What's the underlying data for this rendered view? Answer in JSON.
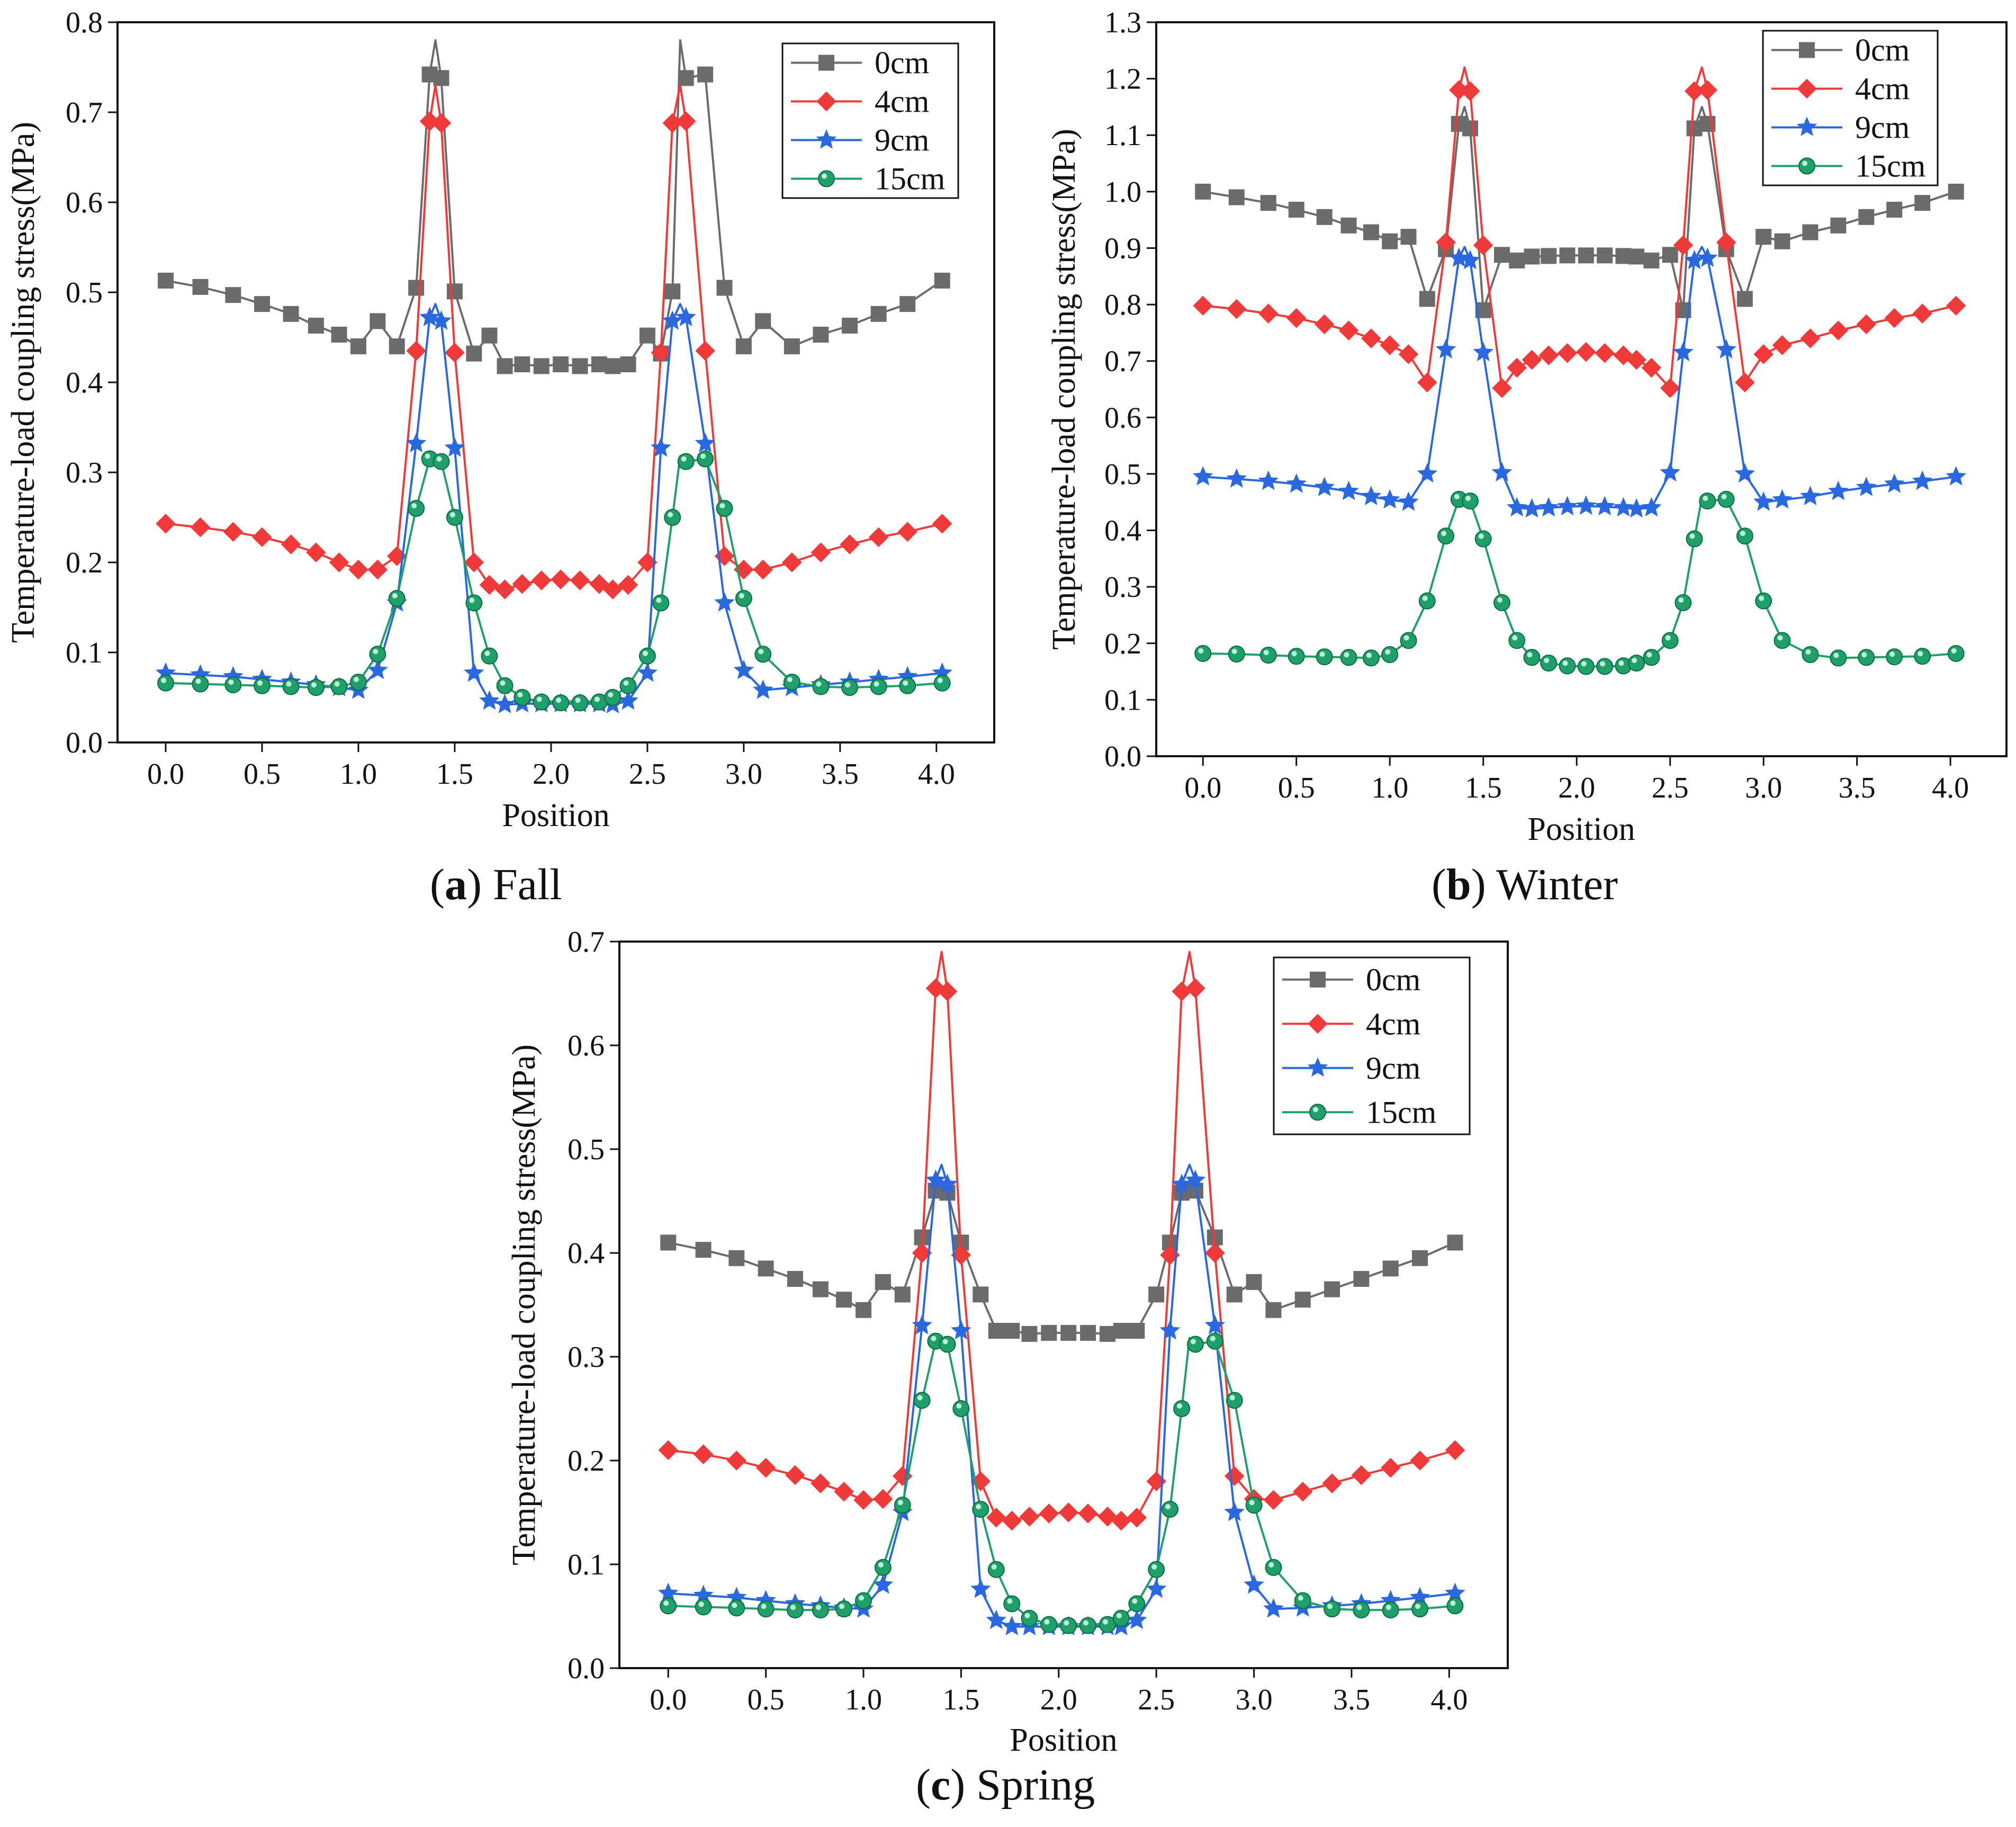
{
  "captions": [
    {
      "open": "(",
      "letter": "a",
      "close": ") ",
      "text": "Fall"
    },
    {
      "open": "(",
      "letter": "b",
      "close": ") ",
      "text": "Winter"
    },
    {
      "open": "(",
      "letter": "c",
      "close": ") ",
      "text": "Spring"
    }
  ],
  "colors": {
    "0cm": "#6b6b6b",
    "4cm": "#f03a3a",
    "9cm": "#2a68e0",
    "15cm": "#1fa06a"
  },
  "chart_data": [
    {
      "type": "line",
      "id": "fall",
      "title": "(a) Fall",
      "xlabel": "Position",
      "ylabel": "Temperature-load coupling stress(MPa)",
      "xlim": [
        -0.25,
        4.3
      ],
      "ylim": [
        0,
        0.8
      ],
      "xticks": [
        0.0,
        0.5,
        1.0,
        1.5,
        2.0,
        2.5,
        3.0,
        3.5,
        4.0
      ],
      "yticks": [
        0.0,
        0.1,
        0.2,
        0.3,
        0.4,
        0.5,
        0.6,
        0.7,
        0.8
      ],
      "legend": "top-right",
      "x": [
        0.0,
        0.18,
        0.35,
        0.5,
        0.65,
        0.78,
        0.9,
        1.0,
        1.1,
        1.2,
        1.3,
        1.37,
        1.43,
        1.5,
        1.6,
        1.68,
        1.76,
        1.85,
        1.95,
        2.05,
        2.15,
        2.25,
        2.32,
        2.4,
        2.5,
        2.57,
        2.63,
        2.7,
        2.8,
        2.9,
        3.0,
        3.1,
        3.25,
        3.4,
        3.55,
        3.7,
        3.85,
        4.03
      ],
      "series": [
        {
          "name": "0cm",
          "marker": "square",
          "peak": 0.78,
          "values": [
            0.513,
            0.506,
            0.497,
            0.487,
            0.476,
            0.463,
            0.453,
            0.44,
            0.468,
            0.44,
            0.505,
            0.742,
            0.738,
            0.501,
            0.432,
            0.452,
            0.418,
            0.42,
            0.418,
            0.42,
            0.418,
            0.42,
            0.418,
            0.42,
            0.452,
            0.432,
            0.501,
            0.738,
            0.742,
            0.505,
            0.44,
            0.468,
            0.44,
            0.453,
            0.463,
            0.476,
            0.487,
            0.513
          ]
        },
        {
          "name": "4cm",
          "marker": "diamond",
          "peak": 0.73,
          "values": [
            0.243,
            0.239,
            0.234,
            0.228,
            0.22,
            0.211,
            0.2,
            0.192,
            0.192,
            0.207,
            0.435,
            0.69,
            0.688,
            0.433,
            0.2,
            0.175,
            0.17,
            0.176,
            0.18,
            0.181,
            0.18,
            0.176,
            0.17,
            0.175,
            0.2,
            0.433,
            0.688,
            0.69,
            0.435,
            0.207,
            0.192,
            0.192,
            0.2,
            0.211,
            0.22,
            0.228,
            0.234,
            0.243
          ]
        },
        {
          "name": "9cm",
          "marker": "star",
          "peak": 0.487,
          "values": [
            0.077,
            0.075,
            0.073,
            0.07,
            0.067,
            0.064,
            0.061,
            0.058,
            0.08,
            0.155,
            0.332,
            0.472,
            0.468,
            0.327,
            0.077,
            0.046,
            0.042,
            0.043,
            0.043,
            0.043,
            0.043,
            0.043,
            0.042,
            0.046,
            0.077,
            0.327,
            0.468,
            0.472,
            0.332,
            0.155,
            0.08,
            0.058,
            0.061,
            0.064,
            0.067,
            0.07,
            0.073,
            0.077
          ]
        },
        {
          "name": "15cm",
          "marker": "circle",
          "peak": 0.318,
          "values": [
            0.066,
            0.065,
            0.064,
            0.063,
            0.062,
            0.061,
            0.062,
            0.067,
            0.098,
            0.16,
            0.26,
            0.315,
            0.312,
            0.25,
            0.155,
            0.096,
            0.063,
            0.05,
            0.045,
            0.044,
            0.044,
            0.045,
            0.05,
            0.063,
            0.096,
            0.155,
            0.25,
            0.312,
            0.315,
            0.26,
            0.16,
            0.098,
            0.067,
            0.062,
            0.061,
            0.062,
            0.063,
            0.066
          ]
        }
      ]
    },
    {
      "type": "line",
      "id": "winter",
      "title": "(b) Winter",
      "xlabel": "Position",
      "ylabel": "Temperature-load coupling stress(MPa)",
      "xlim": [
        -0.25,
        4.3
      ],
      "ylim": [
        0,
        1.3
      ],
      "xticks": [
        0.0,
        0.5,
        1.0,
        1.5,
        2.0,
        2.5,
        3.0,
        3.5,
        4.0
      ],
      "yticks": [
        0.0,
        0.1,
        0.2,
        0.3,
        0.4,
        0.5,
        0.6,
        0.7,
        0.8,
        0.9,
        1.0,
        1.1,
        1.2,
        1.3
      ],
      "legend": "top-right",
      "x": [
        0.0,
        0.18,
        0.35,
        0.5,
        0.65,
        0.78,
        0.9,
        1.0,
        1.1,
        1.2,
        1.3,
        1.37,
        1.43,
        1.5,
        1.6,
        1.68,
        1.76,
        1.85,
        1.95,
        2.05,
        2.15,
        2.25,
        2.32,
        2.4,
        2.5,
        2.57,
        2.63,
        2.7,
        2.8,
        2.9,
        3.0,
        3.1,
        3.25,
        3.4,
        3.55,
        3.7,
        3.85,
        4.03
      ],
      "series": [
        {
          "name": "0cm",
          "marker": "square",
          "peak": 1.15,
          "values": [
            1.0,
            0.99,
            0.98,
            0.968,
            0.955,
            0.94,
            0.928,
            0.912,
            0.92,
            0.81,
            0.898,
            1.12,
            1.112,
            0.79,
            0.888,
            0.878,
            0.885,
            0.886,
            0.887,
            0.887,
            0.887,
            0.886,
            0.885,
            0.878,
            0.888,
            0.79,
            1.112,
            1.12,
            0.898,
            0.81,
            0.92,
            0.912,
            0.928,
            0.94,
            0.955,
            0.968,
            0.98,
            1.0
          ]
        },
        {
          "name": "4cm",
          "marker": "diamond",
          "peak": 1.22,
          "values": [
            0.798,
            0.792,
            0.784,
            0.776,
            0.765,
            0.754,
            0.74,
            0.728,
            0.712,
            0.662,
            0.91,
            1.18,
            1.178,
            0.905,
            0.652,
            0.688,
            0.702,
            0.71,
            0.714,
            0.716,
            0.714,
            0.71,
            0.702,
            0.688,
            0.652,
            0.905,
            1.178,
            1.18,
            0.91,
            0.662,
            0.712,
            0.728,
            0.74,
            0.754,
            0.765,
            0.776,
            0.784,
            0.798
          ]
        },
        {
          "name": "9cm",
          "marker": "star",
          "peak": 0.902,
          "values": [
            0.495,
            0.491,
            0.487,
            0.482,
            0.476,
            0.469,
            0.46,
            0.454,
            0.45,
            0.5,
            0.72,
            0.882,
            0.878,
            0.715,
            0.502,
            0.44,
            0.438,
            0.44,
            0.442,
            0.443,
            0.442,
            0.44,
            0.438,
            0.44,
            0.502,
            0.715,
            0.878,
            0.882,
            0.72,
            0.5,
            0.45,
            0.454,
            0.46,
            0.469,
            0.476,
            0.482,
            0.487,
            0.495
          ]
        },
        {
          "name": "15cm",
          "marker": "circle",
          "peak": 0.458,
          "values": [
            0.182,
            0.181,
            0.179,
            0.177,
            0.176,
            0.175,
            0.174,
            0.18,
            0.205,
            0.275,
            0.39,
            0.455,
            0.452,
            0.385,
            0.272,
            0.205,
            0.175,
            0.165,
            0.16,
            0.159,
            0.159,
            0.16,
            0.165,
            0.175,
            0.205,
            0.272,
            0.385,
            0.452,
            0.455,
            0.39,
            0.275,
            0.205,
            0.18,
            0.174,
            0.175,
            0.176,
            0.177,
            0.182
          ]
        }
      ]
    },
    {
      "type": "line",
      "id": "spring",
      "title": "(c) Spring",
      "xlabel": "Position",
      "ylabel": "Temperature-load coupling stress(MPa)",
      "xlim": [
        -0.25,
        4.3
      ],
      "ylim": [
        0,
        0.7
      ],
      "xticks": [
        0.0,
        0.5,
        1.0,
        1.5,
        2.0,
        2.5,
        3.0,
        3.5,
        4.0
      ],
      "yticks": [
        0.0,
        0.1,
        0.2,
        0.3,
        0.4,
        0.5,
        0.6,
        0.7
      ],
      "legend": "top-right",
      "x": [
        0.0,
        0.18,
        0.35,
        0.5,
        0.65,
        0.78,
        0.9,
        1.0,
        1.1,
        1.2,
        1.3,
        1.37,
        1.43,
        1.5,
        1.6,
        1.68,
        1.76,
        1.85,
        1.95,
        2.05,
        2.15,
        2.25,
        2.32,
        2.4,
        2.5,
        2.57,
        2.63,
        2.7,
        2.8,
        2.9,
        3.0,
        3.1,
        3.25,
        3.4,
        3.55,
        3.7,
        3.85,
        4.03
      ],
      "series": [
        {
          "name": "0cm",
          "marker": "square",
          "peak": 0.47,
          "values": [
            0.41,
            0.403,
            0.395,
            0.385,
            0.375,
            0.365,
            0.355,
            0.345,
            0.372,
            0.36,
            0.415,
            0.46,
            0.458,
            0.41,
            0.36,
            0.325,
            0.325,
            0.322,
            0.323,
            0.323,
            0.323,
            0.322,
            0.325,
            0.325,
            0.36,
            0.41,
            0.458,
            0.46,
            0.415,
            0.36,
            0.372,
            0.345,
            0.355,
            0.365,
            0.375,
            0.385,
            0.395,
            0.41
          ]
        },
        {
          "name": "4cm",
          "marker": "diamond",
          "peak": 0.69,
          "values": [
            0.21,
            0.206,
            0.2,
            0.193,
            0.186,
            0.178,
            0.17,
            0.162,
            0.163,
            0.185,
            0.4,
            0.655,
            0.652,
            0.398,
            0.18,
            0.145,
            0.142,
            0.146,
            0.149,
            0.15,
            0.149,
            0.146,
            0.142,
            0.145,
            0.18,
            0.398,
            0.652,
            0.655,
            0.4,
            0.185,
            0.163,
            0.162,
            0.17,
            0.178,
            0.186,
            0.193,
            0.2,
            0.21
          ]
        },
        {
          "name": "9cm",
          "marker": "star",
          "peak": 0.485,
          "values": [
            0.072,
            0.07,
            0.068,
            0.065,
            0.062,
            0.06,
            0.058,
            0.057,
            0.08,
            0.15,
            0.33,
            0.47,
            0.466,
            0.325,
            0.076,
            0.046,
            0.04,
            0.04,
            0.04,
            0.04,
            0.04,
            0.04,
            0.04,
            0.046,
            0.076,
            0.325,
            0.466,
            0.47,
            0.33,
            0.15,
            0.08,
            0.057,
            0.058,
            0.06,
            0.062,
            0.065,
            0.068,
            0.072
          ]
        },
        {
          "name": "15cm",
          "marker": "circle",
          "peak": 0.318,
          "values": [
            0.06,
            0.059,
            0.058,
            0.057,
            0.056,
            0.056,
            0.057,
            0.065,
            0.097,
            0.157,
            0.258,
            0.315,
            0.312,
            0.25,
            0.153,
            0.095,
            0.062,
            0.048,
            0.042,
            0.041,
            0.041,
            0.042,
            0.048,
            0.062,
            0.095,
            0.153,
            0.25,
            0.312,
            0.315,
            0.258,
            0.157,
            0.097,
            0.065,
            0.057,
            0.056,
            0.056,
            0.057,
            0.06
          ]
        }
      ]
    }
  ]
}
